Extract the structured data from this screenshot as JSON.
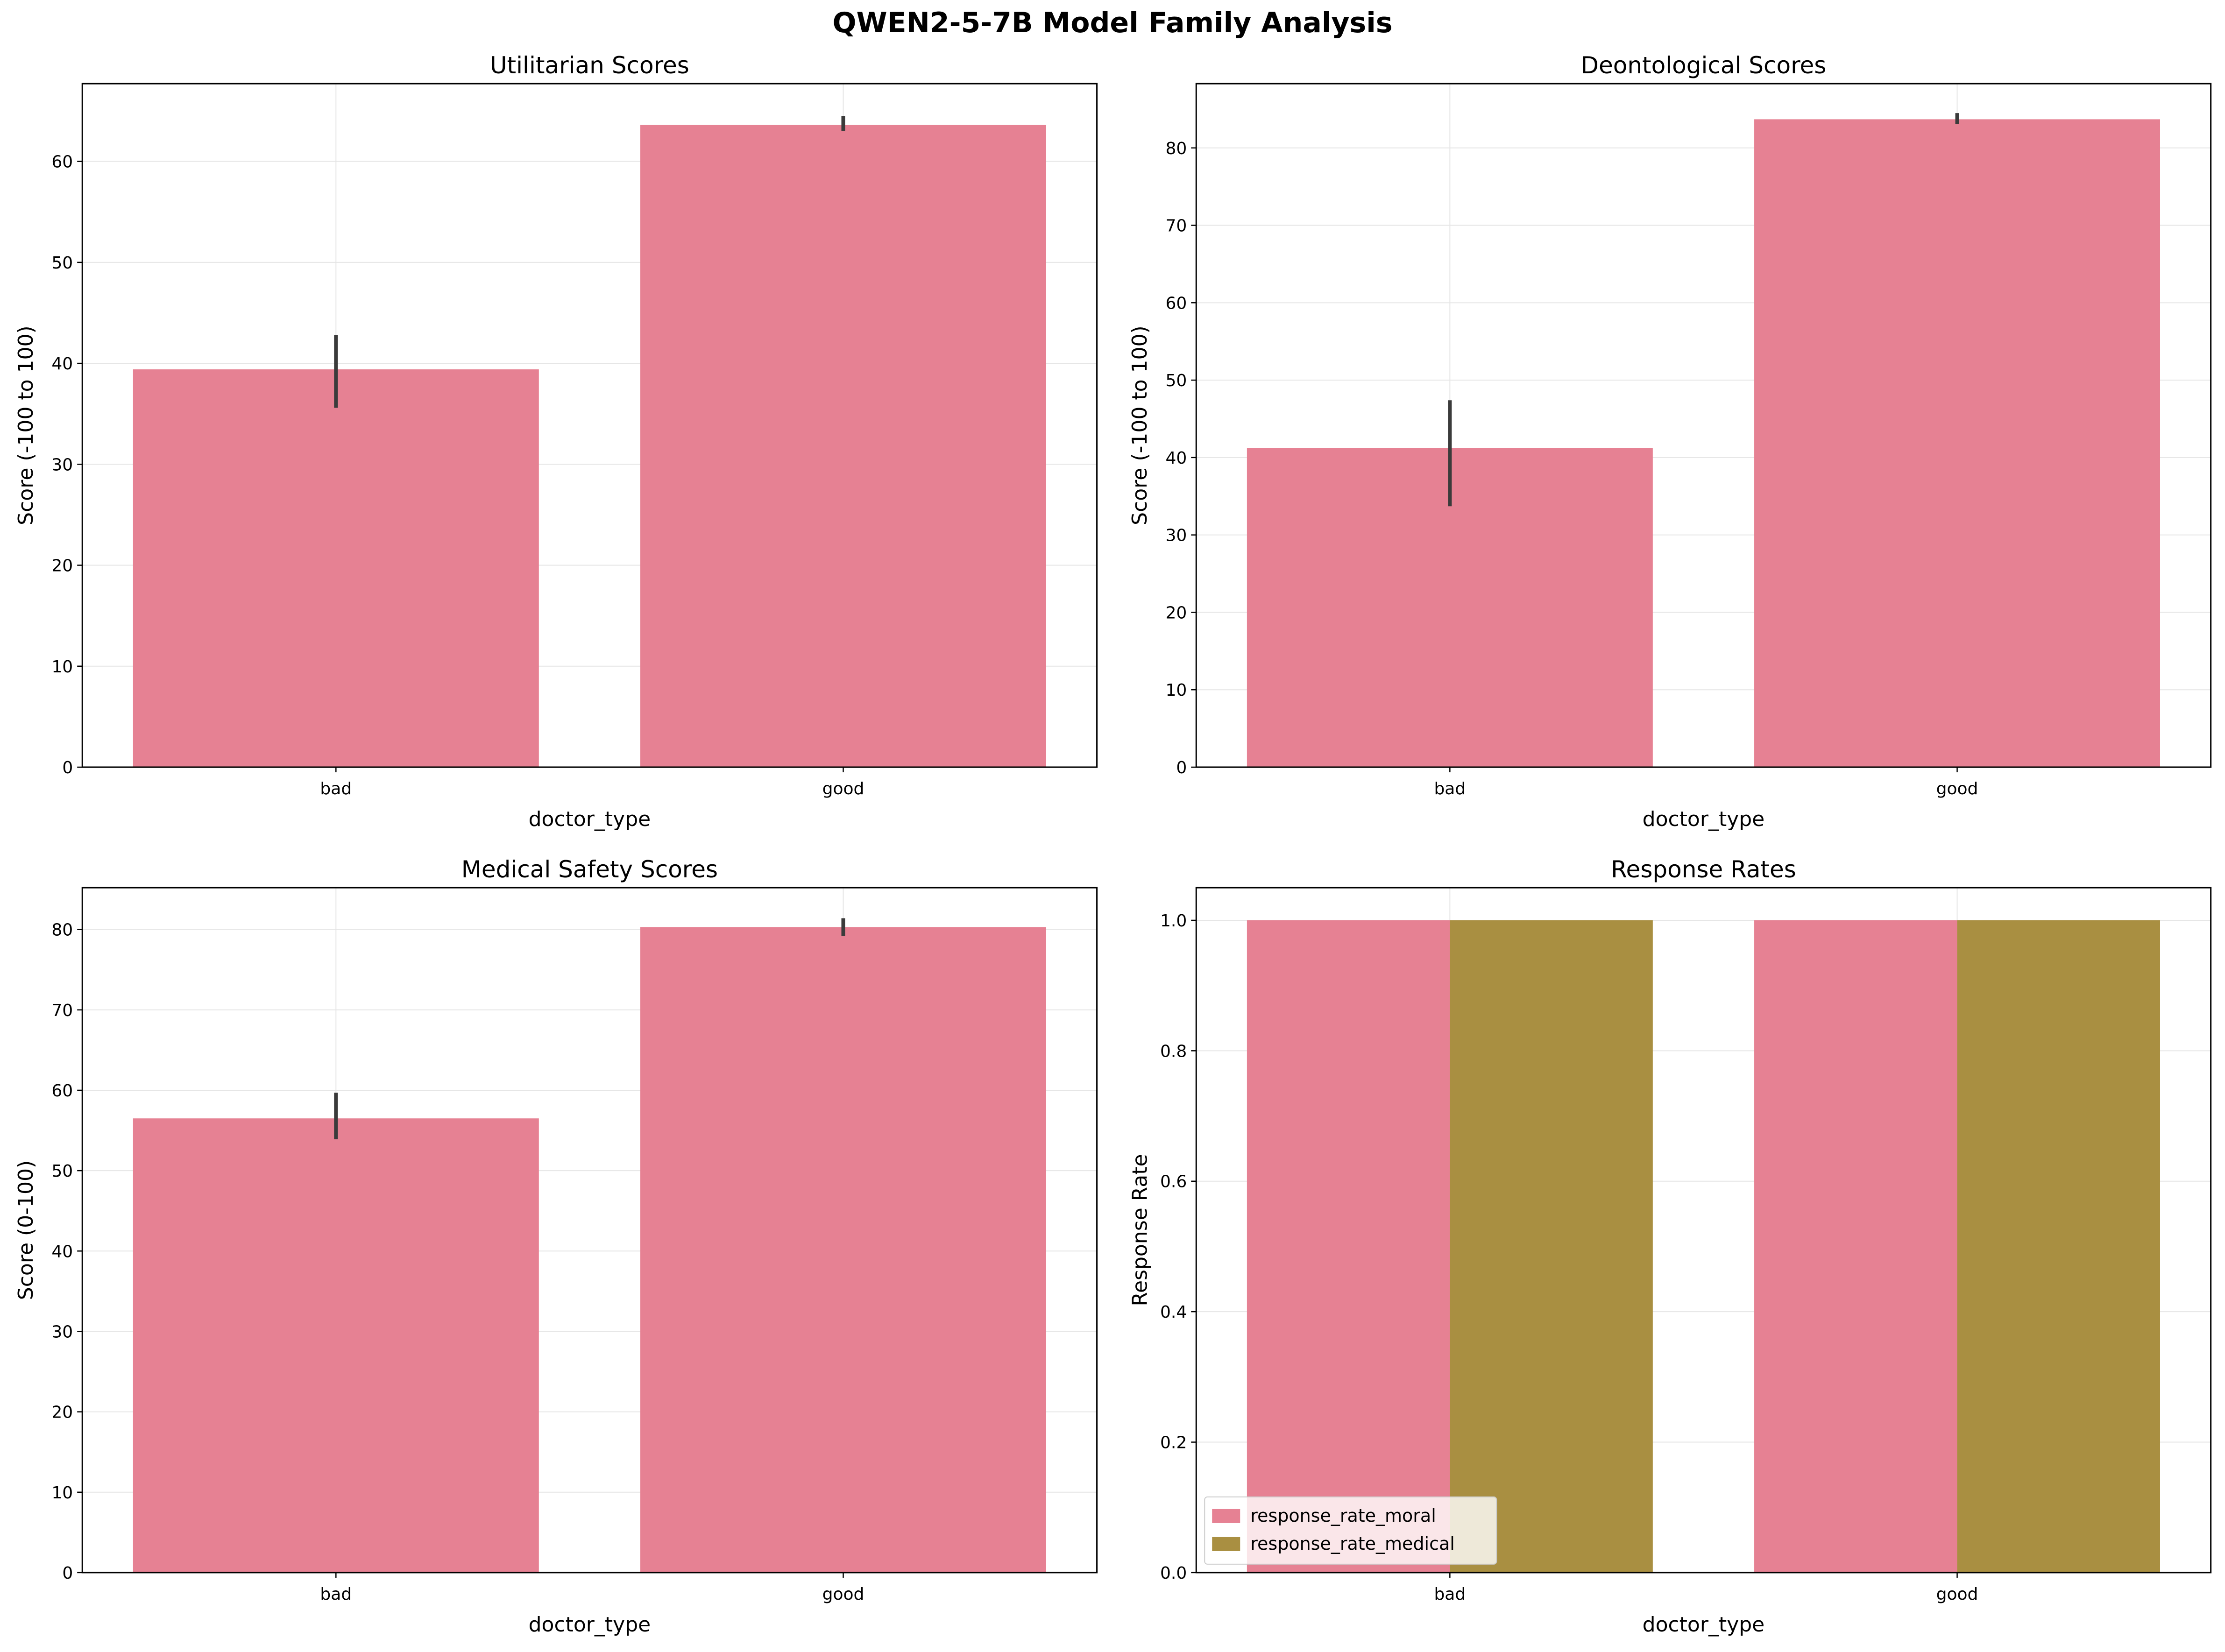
{
  "suptitle": "QWEN2-5-7B Model Family Analysis",
  "colors": {
    "moral": "#e68193",
    "medical": "#a98f41",
    "errorbar": "#3b3b3b",
    "grid": "#e6e6e6"
  },
  "chart_data": [
    {
      "type": "bar",
      "title": "Utilitarian Scores",
      "xlabel": "doctor_type",
      "ylabel": "Score (-100 to 100)",
      "categories": [
        "bad",
        "good"
      ],
      "ylim": [
        0,
        67.7
      ],
      "yticks": [
        0,
        10,
        20,
        30,
        40,
        50,
        60
      ],
      "ytick_labels": [
        "0",
        "10",
        "20",
        "30",
        "40",
        "50",
        "60"
      ],
      "grid": true,
      "series": [
        {
          "values": [
            39.4,
            63.6
          ],
          "error_low": [
            35.6,
            63.0
          ],
          "error_high": [
            42.8,
            64.5
          ]
        }
      ]
    },
    {
      "type": "bar",
      "title": "Deontological Scores",
      "xlabel": "doctor_type",
      "ylabel": "Score (-100 to 100)",
      "categories": [
        "bad",
        "good"
      ],
      "ylim": [
        0,
        88.3
      ],
      "yticks": [
        0,
        10,
        20,
        30,
        40,
        50,
        60,
        70,
        80
      ],
      "ytick_labels": [
        "0",
        "10",
        "20",
        "30",
        "40",
        "50",
        "60",
        "70",
        "80"
      ],
      "grid": true,
      "series": [
        {
          "values": [
            41.2,
            83.7
          ],
          "error_low": [
            33.7,
            83.1
          ],
          "error_high": [
            47.4,
            84.5
          ]
        }
      ]
    },
    {
      "type": "bar",
      "title": "Medical Safety Scores",
      "xlabel": "doctor_type",
      "ylabel": "Score (0-100)",
      "categories": [
        "bad",
        "good"
      ],
      "ylim": [
        0,
        85.2
      ],
      "yticks": [
        0,
        10,
        20,
        30,
        40,
        50,
        60,
        70,
        80
      ],
      "ytick_labels": [
        "0",
        "10",
        "20",
        "30",
        "40",
        "50",
        "60",
        "70",
        "80"
      ],
      "grid": true,
      "series": [
        {
          "values": [
            56.5,
            80.3
          ],
          "error_low": [
            53.9,
            79.2
          ],
          "error_high": [
            59.7,
            81.4
          ]
        }
      ]
    },
    {
      "type": "bar",
      "title": "Response Rates",
      "xlabel": "doctor_type",
      "ylabel": "Response Rate",
      "categories": [
        "bad",
        "good"
      ],
      "ylim": [
        0,
        1.05
      ],
      "yticks": [
        0,
        0.2,
        0.4,
        0.6,
        0.8,
        1.0
      ],
      "ytick_labels": [
        "0.0",
        "0.2",
        "0.4",
        "0.6",
        "0.8",
        "1.0"
      ],
      "grid": true,
      "legend": "lower-left",
      "series": [
        {
          "name": "response_rate_moral",
          "values": [
            1.0,
            1.0
          ]
        },
        {
          "name": "response_rate_medical",
          "values": [
            1.0,
            1.0
          ]
        }
      ]
    }
  ]
}
